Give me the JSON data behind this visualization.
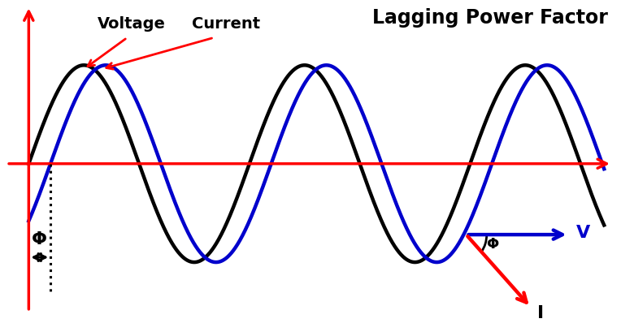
{
  "title": "Lagging Power Factor",
  "title_fontsize": 17,
  "title_fontweight": "bold",
  "bg_color": "#ffffff",
  "voltage_color": "#000000",
  "current_color": "#0000cc",
  "axis_color": "#ff0000",
  "annotation_color": "#ff0000",
  "phi_label": "Φ",
  "voltage_label": "Voltage",
  "current_label": "Current",
  "V_label": "V",
  "I_label": "I",
  "amplitude": 1.0,
  "period": 2.8,
  "phase_shift_rad": 0.62,
  "figsize": [
    7.64,
    3.98
  ],
  "dpi": 100,
  "xlim": [
    -0.35,
    7.5
  ],
  "ylim": [
    -1.55,
    1.65
  ]
}
